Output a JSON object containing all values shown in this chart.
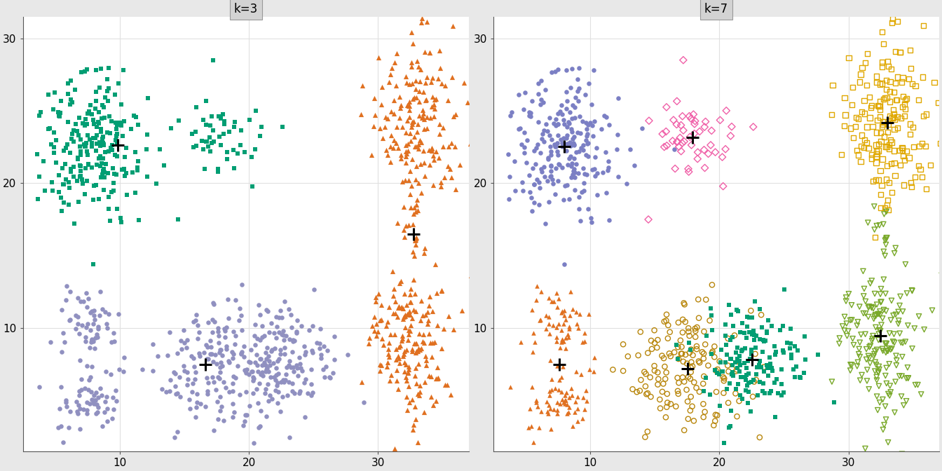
{
  "panel1_title": "k=3",
  "panel2_title": "k=7",
  "xlim": [
    2.5,
    37
  ],
  "ylim": [
    1.5,
    31.5
  ],
  "xticks": [
    10,
    20,
    30
  ],
  "yticks": [
    10,
    20,
    30
  ],
  "fig_bg": "#e8e8e8",
  "panel_bg": "#ffffff",
  "grid_color": "#e0e0e0",
  "title_bg": "#d3d3d3",
  "seed": 42,
  "k3": {
    "green": {
      "color": "#009E73",
      "marker": "s",
      "filled": true
    },
    "orange": {
      "color": "#E07020",
      "marker": "^",
      "filled": true
    },
    "purple": {
      "color": "#9090C0",
      "marker": "o",
      "filled": true
    }
  },
  "k7": {
    "purple": {
      "color": "#7B7FC4",
      "marker": "o",
      "filled": true
    },
    "pink": {
      "color": "#F060A8",
      "marker": "D",
      "filled": false
    },
    "yellow": {
      "color": "#E0A800",
      "marker": "s",
      "filled": false
    },
    "orange": {
      "color": "#E07020",
      "marker": "^",
      "filled": true
    },
    "tan": {
      "color": "#B8860B",
      "marker": "o",
      "filled": false
    },
    "teal": {
      "color": "#009E73",
      "marker": "s",
      "filled": true
    },
    "lgreen": {
      "color": "#78A828",
      "marker": "v",
      "filled": false
    }
  }
}
